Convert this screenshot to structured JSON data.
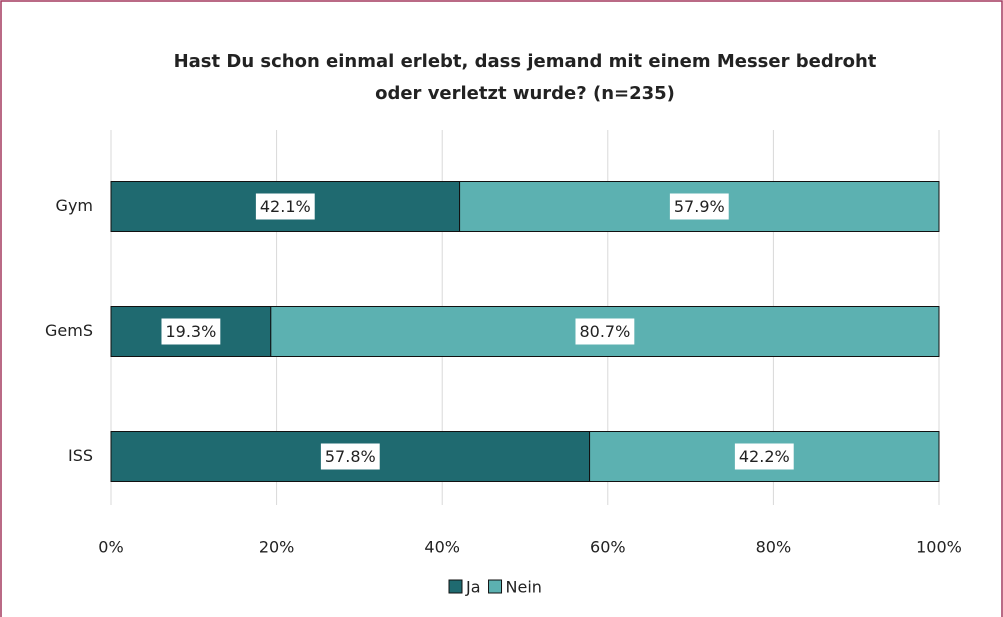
{
  "chart_data": {
    "type": "stacked-barh",
    "title": [
      "Hast Du schon einmal erlebt, dass jemand mit einem Messer bedroht",
      "oder verletzt wurde?  (n=235)"
    ],
    "categories": [
      "Gym",
      "GemS",
      "ISS"
    ],
    "series": [
      {
        "name": "Ja",
        "color": "#1f6a70",
        "values": [
          42.1,
          19.3,
          57.8
        ],
        "value_labels": [
          "42.1%",
          "19.3%",
          "57.8%"
        ]
      },
      {
        "name": "Nein",
        "color": "#5cb1b1",
        "values": [
          57.9,
          80.7,
          42.2
        ],
        "value_labels": [
          "57.9%",
          "80.7%",
          "42.2%"
        ]
      }
    ],
    "xlim": [
      0,
      100
    ],
    "xticks": [
      {
        "value": 0,
        "label": "0%"
      },
      {
        "value": 20,
        "label": "20%"
      },
      {
        "value": 40,
        "label": "40%"
      },
      {
        "value": 60,
        "label": "60%"
      },
      {
        "value": 80,
        "label": "80%"
      },
      {
        "value": 100,
        "label": "100%"
      }
    ],
    "grid": true,
    "legend": "bottom"
  }
}
